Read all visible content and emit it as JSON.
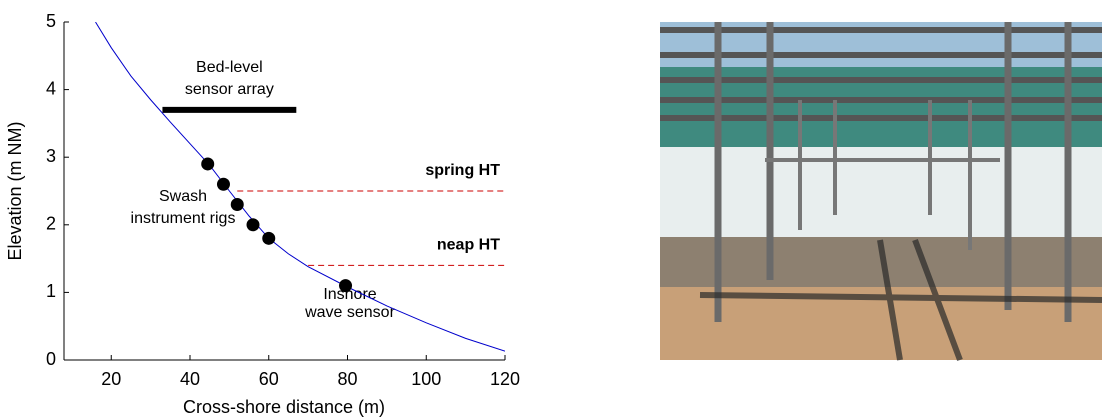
{
  "chart_data": {
    "type": "line",
    "xlabel": "Cross-shore distance (m)",
    "ylabel": "Elevation (m NM)",
    "xlim": [
      8,
      120
    ],
    "ylim": [
      0,
      5
    ],
    "xticks": [
      20,
      40,
      60,
      80,
      100,
      120
    ],
    "yticks": [
      0,
      1,
      2,
      3,
      4,
      5
    ],
    "series": [
      {
        "type": "line",
        "color": "#0000cc",
        "x": [
          16,
          20,
          25,
          30,
          35,
          40,
          45,
          50,
          55,
          60,
          65,
          70,
          80,
          90,
          100,
          110,
          120
        ],
        "values": [
          5,
          4.62,
          4.2,
          3.85,
          3.52,
          3.2,
          2.88,
          2.5,
          2.13,
          1.8,
          1.57,
          1.38,
          1.08,
          0.8,
          0.55,
          0.32,
          0.13
        ]
      },
      {
        "type": "scatter",
        "color": "#000000",
        "x": [
          44.5,
          48.5,
          52,
          56,
          60,
          79.5
        ],
        "values": [
          2.9,
          2.6,
          2.3,
          2.0,
          1.8,
          1.1
        ]
      }
    ],
    "reference_lines": [
      {
        "label": "spring HT",
        "y": 2.5,
        "x": [
          52,
          120
        ],
        "color": "#cc0000"
      },
      {
        "label": "neap HT",
        "y": 1.4,
        "x": [
          70,
          120
        ],
        "color": "#cc0000"
      }
    ],
    "sensor_array": {
      "label": [
        "Bed-level",
        "sensor array"
      ],
      "y": 3.7,
      "x": [
        33,
        67
      ],
      "color": "#000000"
    },
    "annotations": [
      {
        "text": [
          "Swash",
          "instrument rigs"
        ]
      },
      {
        "text": [
          "Inshore",
          "wave sensor"
        ]
      }
    ]
  }
}
